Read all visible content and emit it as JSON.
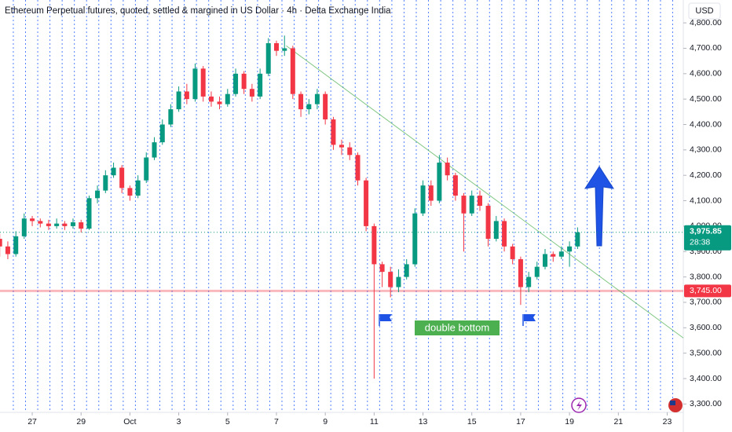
{
  "chart_data": {
    "type": "candlestick",
    "title": "Ethereum Perpetual futures, quoted, settled & margined in US Dollar · 4h · Delta Exchange India",
    "currency": "USD",
    "up_color": "#089981",
    "down_color": "#f23645",
    "xlim": [
      -1.32,
      26.66
    ],
    "xticks": [
      {
        "value": 0,
        "label": "27"
      },
      {
        "value": 2,
        "label": "29"
      },
      {
        "value": 4,
        "label": "Oct"
      },
      {
        "value": 6,
        "label": "3"
      },
      {
        "value": 8,
        "label": "5"
      },
      {
        "value": 10,
        "label": "7"
      },
      {
        "value": 12,
        "label": "9"
      },
      {
        "value": 14,
        "label": "11"
      },
      {
        "value": 16,
        "label": "13"
      },
      {
        "value": 18,
        "label": "15"
      },
      {
        "value": 20,
        "label": "17"
      },
      {
        "value": 22,
        "label": "19"
      },
      {
        "value": 24,
        "label": "21"
      },
      {
        "value": 26,
        "label": "23"
      }
    ],
    "ylim": [
      3267,
      4890
    ],
    "yticks": [
      {
        "value": 3300,
        "label": "3,300.00"
      },
      {
        "value": 3400,
        "label": "3,400.00"
      },
      {
        "value": 3500,
        "label": "3,500.00"
      },
      {
        "value": 3600,
        "label": "3,600.00"
      },
      {
        "value": 3700,
        "label": "3,700.00"
      },
      {
        "value": 3800,
        "label": "3,800.00"
      },
      {
        "value": 3900,
        "label": "3,900.00"
      },
      {
        "value": 4000,
        "label": "4,000.00"
      },
      {
        "value": 4100,
        "label": "4,100.00"
      },
      {
        "value": 4200,
        "label": "4,200.00"
      },
      {
        "value": 4300,
        "label": "4,300.00"
      },
      {
        "value": 4400,
        "label": "4,400.00"
      },
      {
        "value": 4500,
        "label": "4,500.00"
      },
      {
        "value": 4600,
        "label": "4,600.00"
      },
      {
        "value": 4700,
        "label": "4,700.00"
      },
      {
        "value": 4800,
        "label": "4,800.00"
      }
    ],
    "x": [
      -1.33,
      -1,
      -0.67,
      -0.33,
      0,
      0.33,
      0.67,
      1,
      1.33,
      1.67,
      2,
      2.33,
      2.67,
      3,
      3.33,
      3.67,
      4,
      4.33,
      4.67,
      5,
      5.33,
      5.67,
      6,
      6.33,
      6.67,
      7,
      7.33,
      7.67,
      8,
      8.33,
      8.67,
      9,
      9.33,
      9.67,
      10,
      10.33,
      10.67,
      11,
      11.33,
      11.67,
      12,
      12.33,
      12.67,
      13,
      13.33,
      13.67,
      14,
      14.33,
      14.67,
      15,
      15.33,
      15.67,
      16,
      16.33,
      16.67,
      17,
      17.33,
      17.67,
      18,
      18.33,
      18.67,
      19,
      19.33,
      19.67,
      20,
      20.33,
      20.67,
      21,
      21.33,
      21.67,
      22,
      22.33
    ],
    "open": [
      3950,
      3920,
      3890,
      3960,
      4030,
      4020,
      4010,
      4000,
      4010,
      4000,
      4015,
      3990,
      4110,
      4140,
      4200,
      4230,
      4150,
      4120,
      4180,
      4270,
      4330,
      4400,
      4460,
      4530,
      4500,
      4620,
      4510,
      4490,
      4480,
      4520,
      4600,
      4540,
      4510,
      4600,
      4720,
      4690,
      4700,
      4520,
      4460,
      4480,
      4520,
      4420,
      4320,
      4310,
      4280,
      4180,
      4000,
      3850,
      3820,
      3760,
      3800,
      3850,
      4050,
      4160,
      4100,
      4250,
      4200,
      4120,
      4050,
      4120,
      4080,
      3950,
      4020,
      3920,
      3870,
      3760,
      3800,
      3840,
      3890,
      3880,
      3900,
      3920
    ],
    "high": [
      3970,
      3940,
      3980,
      4050,
      4040,
      4030,
      4025,
      4030,
      4020,
      4030,
      4025,
      4120,
      4160,
      4220,
      4250,
      4240,
      4160,
      4200,
      4290,
      4350,
      4420,
      4480,
      4550,
      4560,
      4640,
      4630,
      4530,
      4510,
      4540,
      4620,
      4610,
      4560,
      4620,
      4740,
      4730,
      4750,
      4710,
      4530,
      4500,
      4540,
      4530,
      4430,
      4340,
      4330,
      4290,
      4190,
      4010,
      3860,
      3840,
      3830,
      3870,
      4070,
      4180,
      4180,
      4280,
      4270,
      4210,
      4130,
      4140,
      4140,
      4090,
      4040,
      4030,
      3930,
      3880,
      3820,
      3860,
      3910,
      3900,
      3920,
      3940,
      3995
    ],
    "low": [
      3880,
      3870,
      3880,
      3950,
      4000,
      3995,
      3985,
      3990,
      3985,
      3990,
      3975,
      3985,
      4090,
      4130,
      4190,
      4130,
      4100,
      4110,
      4170,
      4260,
      4320,
      4390,
      4450,
      4480,
      4490,
      4490,
      4470,
      4460,
      4470,
      4510,
      4520,
      4490,
      4500,
      4590,
      4670,
      4670,
      4500,
      4430,
      4440,
      4460,
      4400,
      4300,
      4280,
      4260,
      4160,
      3980,
      3400,
      3760,
      3720,
      3740,
      3790,
      3840,
      4040,
      4080,
      4090,
      4180,
      4100,
      3900,
      4040,
      4060,
      3920,
      3940,
      3900,
      3850,
      3690,
      3740,
      3790,
      3830,
      3860,
      3870,
      3840,
      3910
    ],
    "close": [
      3920,
      3890,
      3960,
      4030,
      4020,
      4010,
      4000,
      4010,
      4000,
      4015,
      3990,
      4110,
      4140,
      4200,
      4230,
      4150,
      4120,
      4180,
      4270,
      4330,
      4400,
      4460,
      4530,
      4500,
      4620,
      4510,
      4490,
      4480,
      4520,
      4600,
      4540,
      4510,
      4600,
      4720,
      4690,
      4700,
      4520,
      4460,
      4480,
      4520,
      4420,
      4320,
      4310,
      4280,
      4180,
      4000,
      3850,
      3820,
      3760,
      3800,
      3850,
      4050,
      4160,
      4100,
      4250,
      4200,
      4120,
      4050,
      4120,
      4080,
      3950,
      4020,
      3920,
      3870,
      3760,
      3800,
      3840,
      3890,
      3880,
      3900,
      3920,
      3975.85
    ],
    "last_price": {
      "value": 3975.85,
      "label": "3,975.85"
    },
    "countdown": "28:38",
    "support": {
      "value": 3745,
      "label": "3,745.00"
    },
    "trendline": {
      "x": [
        10.4,
        26.66
      ],
      "y": [
        4710,
        3560
      ]
    },
    "annotation": "double bottom"
  }
}
